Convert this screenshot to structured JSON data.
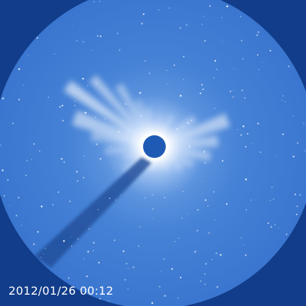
{
  "image": {
    "timestamp": "2012/01/26 00:12",
    "colors": {
      "field": "#3f7ed6",
      "outer_mask": "#123d8a",
      "corona": "#ffffff",
      "occulter": "#1f5bb5",
      "pylon_shadow": "#1d4a96",
      "stars": "#e8f1ff"
    }
  }
}
